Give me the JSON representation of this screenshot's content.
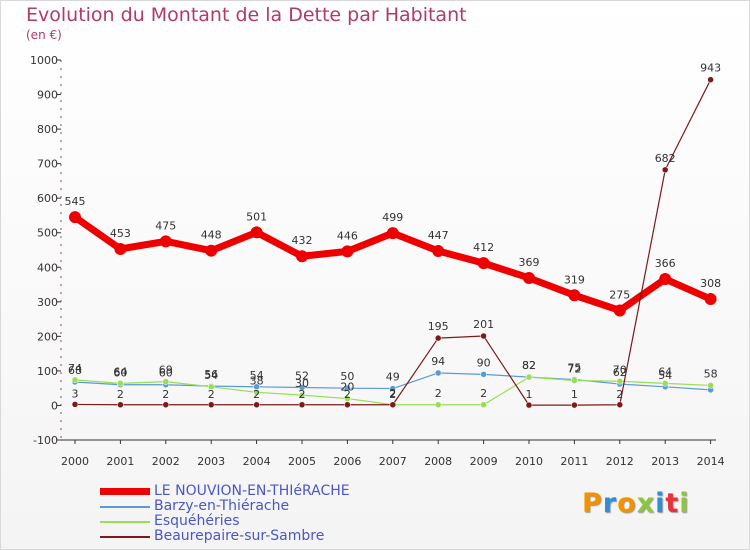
{
  "title": "Evolution du Montant de la Dette par Habitant",
  "subtitle": "(en €)",
  "logo": {
    "text": "Proxiti",
    "colors": [
      "#f39200",
      "#2f8fd6",
      "#f39200",
      "#8cc63f",
      "#2f8fd6",
      "#e5323b",
      "#8cc63f"
    ]
  },
  "chart_data": {
    "type": "line",
    "title": "Evolution du Montant de la Dette par Habitant",
    "ylabel": "(en €)",
    "xlabel": "",
    "ylim": [
      -100,
      1000
    ],
    "yticks": [
      -100,
      0,
      100,
      200,
      300,
      400,
      500,
      600,
      700,
      800,
      900,
      1000
    ],
    "ytick_labels": [
      "-100",
      "0",
      "100",
      "200",
      "300",
      "400",
      "500",
      "600",
      "700",
      "800",
      "900",
      "1000"
    ],
    "categories": [
      "2000",
      "2001",
      "2002",
      "2003",
      "2004",
      "2005",
      "2006",
      "2007",
      "2008",
      "2009",
      "2010",
      "2011",
      "2012",
      "2013",
      "2014"
    ],
    "grid": false,
    "legend_position": "bottom-left",
    "series": [
      {
        "name": "LE NOUVION-EN-THIéRACHE",
        "color": "#ee0000",
        "values": [
          545,
          453,
          475,
          448,
          501,
          432,
          446,
          499,
          447,
          412,
          369,
          319,
          275,
          366,
          308
        ],
        "labels": [
          "545",
          "453",
          "475",
          "448",
          "501",
          "432",
          "446",
          "499",
          "447",
          "412",
          "369",
          "319",
          "275",
          "366",
          "308"
        ]
      },
      {
        "name": "Barzy-en-Thiérache",
        "color": "#5a9bd5",
        "values": [
          68,
          60,
          60,
          56,
          54,
          52,
          50,
          49,
          94,
          90,
          82,
          75,
          62,
          54,
          45
        ],
        "labels": [
          "68",
          "60",
          "60",
          "56",
          "54",
          "52",
          "50",
          "49",
          "94",
          "90",
          "82",
          "75",
          "62",
          "54",
          ""
        ]
      },
      {
        "name": "Esquéhéries",
        "color": "#99dd55",
        "values": [
          74,
          64,
          69,
          54,
          38,
          30,
          20,
          2,
          2,
          2,
          82,
          72,
          70,
          64,
          58
        ],
        "labels": [
          "74",
          "64",
          "69",
          "54",
          "38",
          "30",
          "20",
          "2",
          "2",
          "2",
          "82",
          "72",
          "70",
          "64",
          "58"
        ]
      },
      {
        "name": "Beaurepaire-sur-Sambre",
        "color": "#7b1a1a",
        "values": [
          3,
          2,
          2,
          2,
          2,
          2,
          2,
          2,
          195,
          201,
          1,
          1,
          2,
          682,
          943
        ],
        "labels": [
          "3",
          "2",
          "2",
          "2",
          "2",
          "2",
          "2",
          "2",
          "195",
          "201",
          "1",
          "1",
          "2",
          "682",
          "943"
        ]
      }
    ]
  }
}
